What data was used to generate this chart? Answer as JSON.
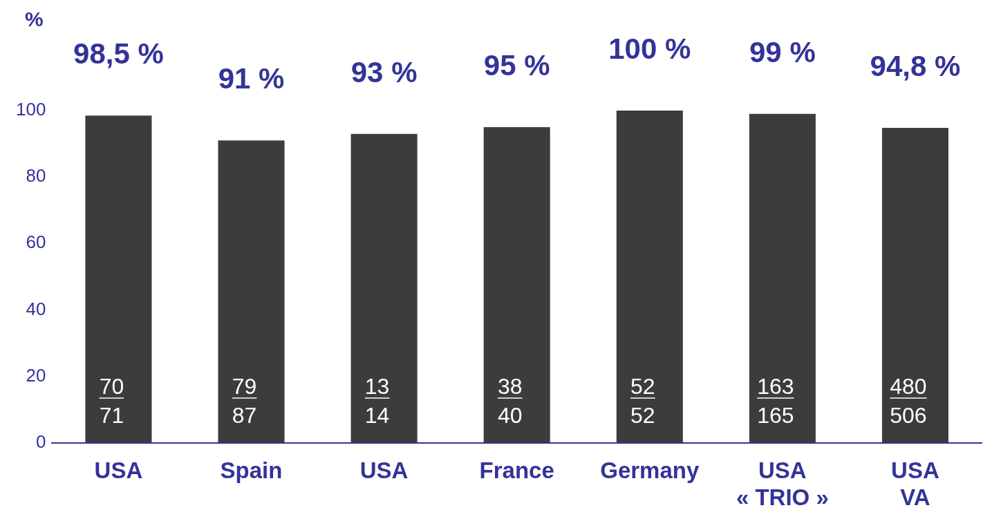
{
  "chart_data": {
    "type": "bar",
    "ylabel": "%",
    "categories": [
      "USA",
      "Spain",
      "USA",
      "France",
      "Germany",
      "USA\n« TRIO »",
      "USA\nVA"
    ],
    "values": [
      98.5,
      91,
      93,
      95,
      100,
      99,
      94.8
    ],
    "value_labels": [
      "98,5 %",
      "91 %",
      "93 %",
      "95 %",
      "100 %",
      "99 %",
      "94,8 %"
    ],
    "color": "#3c3c3c",
    "ylim": [
      0,
      100
    ],
    "yticks": [
      0,
      20,
      40,
      60,
      80,
      100
    ],
    "grid": false,
    "legend": false,
    "annotations": [
      "70",
      "71",
      "79",
      "87",
      "13",
      "14",
      "38",
      "40",
      "52",
      "52",
      "163",
      "165",
      "480",
      "506"
    ]
  }
}
